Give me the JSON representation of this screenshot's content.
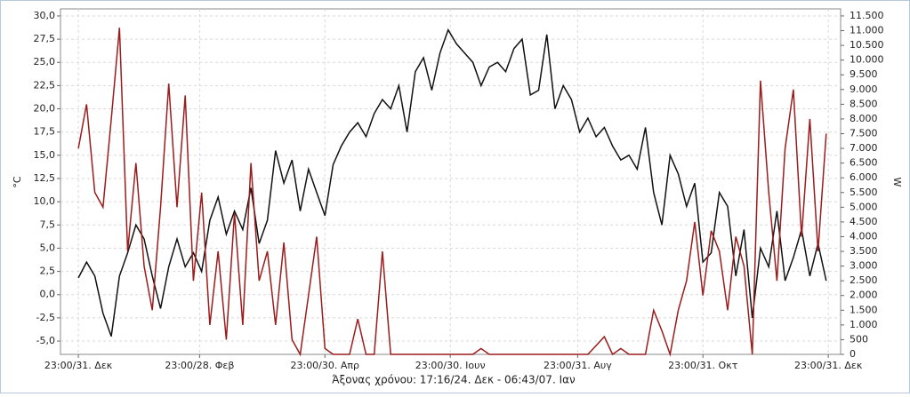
{
  "chart_data": {
    "type": "line",
    "x_label": "Άξονας χρόνου: 17:16/24. Δεκ - 06:43/07. Ιαν",
    "y_label": "°C",
    "y2_label": "W",
    "x": [
      0,
      4,
      8,
      12,
      16,
      20,
      24,
      28,
      32,
      36,
      40,
      44,
      48,
      52,
      56,
      60,
      64,
      68,
      72,
      76,
      80,
      84,
      88,
      92,
      96,
      100,
      104,
      108,
      112,
      116,
      120,
      124,
      128,
      132,
      136,
      140,
      144,
      148,
      152,
      156,
      160,
      164,
      168,
      172,
      176,
      180,
      184,
      188,
      192,
      196,
      200,
      204,
      208,
      212,
      216,
      220,
      224,
      228,
      232,
      236,
      240,
      244,
      248,
      252,
      256,
      260,
      264,
      268,
      272,
      276,
      280,
      284,
      288,
      292,
      296,
      300,
      304,
      308,
      312,
      316,
      320,
      324,
      328,
      332,
      336,
      340,
      344,
      348,
      352,
      356,
      360,
      364
    ],
    "xlim": [
      -8.7,
      371
    ],
    "xticks": [
      {
        "value": 0,
        "label": "23:00/31. Δεκ"
      },
      {
        "value": 59,
        "label": "23:00/28. Φεβ"
      },
      {
        "value": 120,
        "label": "23:00/30. Απρ"
      },
      {
        "value": 181,
        "label": "23:00/30. Ιουν"
      },
      {
        "value": 243,
        "label": "23:00/31. Αυγ"
      },
      {
        "value": 304,
        "label": "23:00/31. Οκτ"
      },
      {
        "value": 365,
        "label": "23:00/31. Δεκ"
      }
    ],
    "ylim": [
      -6.43,
      30.76
    ],
    "yticks": [
      {
        "value": -5,
        "label": "-5,0"
      },
      {
        "value": -2.5,
        "label": "-2,5"
      },
      {
        "value": 0,
        "label": "0,0"
      },
      {
        "value": 2.5,
        "label": "2,5"
      },
      {
        "value": 5,
        "label": "5,0"
      },
      {
        "value": 7.5,
        "label": "7,5"
      },
      {
        "value": 10,
        "label": "10,0"
      },
      {
        "value": 12.5,
        "label": "12,5"
      },
      {
        "value": 15,
        "label": "15,0"
      },
      {
        "value": 17.5,
        "label": "17,5"
      },
      {
        "value": 20,
        "label": "20,0"
      },
      {
        "value": 22.5,
        "label": "22,5"
      },
      {
        "value": 25,
        "label": "25,0"
      },
      {
        "value": 27.5,
        "label": "27,5"
      },
      {
        "value": 30,
        "label": "30,0"
      }
    ],
    "y2lim": [
      0,
      11740
    ],
    "y2ticks": [
      0,
      500,
      {
        "value": 1000,
        "label": "1.000"
      },
      {
        "value": 1500,
        "label": "1.500"
      },
      {
        "value": 2000,
        "label": "2.000"
      },
      {
        "value": 2500,
        "label": "2.500"
      },
      {
        "value": 3000,
        "label": "3.000"
      },
      {
        "value": 3500,
        "label": "3.500"
      },
      {
        "value": 4000,
        "label": "4.000"
      },
      {
        "value": 4500,
        "label": "4.500"
      },
      {
        "value": 5000,
        "label": "5.000"
      },
      {
        "value": 5500,
        "label": "5.500"
      },
      {
        "value": 6000,
        "label": "6.000"
      },
      {
        "value": 6500,
        "label": "6.500"
      },
      {
        "value": 7000,
        "label": "7.000"
      },
      {
        "value": 7500,
        "label": "7.500"
      },
      {
        "value": 8000,
        "label": "8.000"
      },
      {
        "value": 8500,
        "label": "8.500"
      },
      {
        "value": 9000,
        "label": "9.000"
      },
      {
        "value": 9500,
        "label": "9.500"
      },
      {
        "value": 10000,
        "label": "10.000"
      },
      {
        "value": 10500,
        "label": "10.500"
      },
      {
        "value": 11000,
        "label": "11.000"
      },
      {
        "value": 11500,
        "label": "11.500"
      }
    ],
    "grid": true,
    "series": [
      {
        "color": "#111111",
        "values": [
          1.8,
          3.5,
          2.0,
          -2.0,
          -4.5,
          2.0,
          4.5,
          7.5,
          6.0,
          2.0,
          -1.5,
          3.0,
          6.0,
          3.0,
          4.5,
          2.5,
          8.0,
          10.5,
          6.5,
          9.0,
          7.0,
          11.5,
          5.5,
          8.0,
          15.5,
          12.0,
          14.5,
          9.0,
          13.5,
          11.0,
          8.5,
          14.0,
          16.0,
          17.5,
          18.5,
          17.0,
          19.5,
          21.0,
          20.0,
          22.5,
          17.5,
          24.0,
          25.5,
          22.0,
          26.0,
          28.5,
          27.0,
          26.0,
          25.0,
          22.5,
          24.5,
          25.0,
          24.0,
          26.5,
          27.5,
          21.5,
          22.0,
          28.0,
          20.0,
          22.5,
          21.0,
          17.5,
          19.0,
          17.0,
          18.0,
          16.0,
          14.5,
          15.0,
          13.5,
          18.0,
          11.0,
          7.5,
          15.0,
          13.0,
          9.5,
          12.0,
          3.5,
          4.5,
          11.0,
          9.5,
          2.0,
          7.0,
          -2.5,
          5.0,
          3.0,
          9.0,
          1.5,
          4.0,
          7.0,
          2.0,
          5.5,
          1.5
        ]
      },
      {
        "color": "#9b1c1c",
        "axis": "y2",
        "values": [
          7000,
          8500,
          5500,
          5000,
          8000,
          11100,
          3500,
          6500,
          3000,
          1500,
          5000,
          9200,
          5000,
          8800,
          2500,
          5500,
          1000,
          3500,
          500,
          4800,
          1000,
          6500,
          2500,
          3500,
          1000,
          3800,
          500,
          0,
          2000,
          4000,
          200,
          0,
          0,
          0,
          1200,
          0,
          0,
          3500,
          0,
          0,
          0,
          0,
          0,
          0,
          0,
          0,
          0,
          0,
          0,
          200,
          0,
          0,
          0,
          0,
          0,
          0,
          0,
          0,
          0,
          0,
          0,
          0,
          0,
          300,
          600,
          0,
          200,
          0,
          0,
          0,
          1500,
          800,
          0,
          1500,
          2500,
          4500,
          2000,
          4200,
          3500,
          1500,
          4000,
          3000,
          0,
          9300,
          5500,
          2500,
          7000,
          9000,
          4000,
          8000,
          3500,
          7500
        ]
      }
    ]
  }
}
